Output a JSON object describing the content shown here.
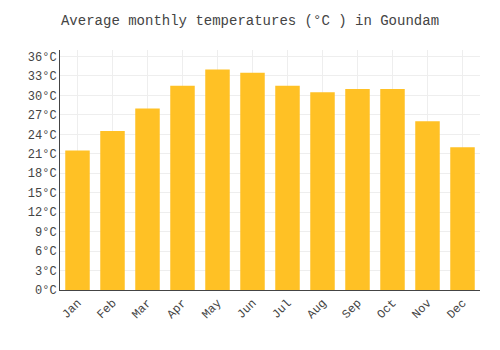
{
  "chart_data": {
    "type": "bar",
    "title": "Average monthly temperatures (°C ) in Goundam",
    "categories": [
      "Jan",
      "Feb",
      "Mar",
      "Apr",
      "May",
      "Jun",
      "Jul",
      "Aug",
      "Sep",
      "Oct",
      "Nov",
      "Dec"
    ],
    "values": [
      21.5,
      24.5,
      28.0,
      31.5,
      34.0,
      33.5,
      31.5,
      30.5,
      31.0,
      31.0,
      26.0,
      22.0
    ],
    "color": "#FFC125",
    "ylim": [
      0,
      37
    ],
    "yticks": [
      {
        "value": 0,
        "label": "0°C"
      },
      {
        "value": 3,
        "label": "3°C"
      },
      {
        "value": 6,
        "label": "6°C"
      },
      {
        "value": 9,
        "label": "9°C"
      },
      {
        "value": 12,
        "label": "12°C"
      },
      {
        "value": 15,
        "label": "15°C"
      },
      {
        "value": 18,
        "label": "18°C"
      },
      {
        "value": 21,
        "label": "21°C"
      },
      {
        "value": 24,
        "label": "24°C"
      },
      {
        "value": 27,
        "label": "27°C"
      },
      {
        "value": 30,
        "label": "30°C"
      },
      {
        "value": 33,
        "label": "33°C"
      },
      {
        "value": 36,
        "label": "36°C"
      }
    ],
    "grid": true
  }
}
